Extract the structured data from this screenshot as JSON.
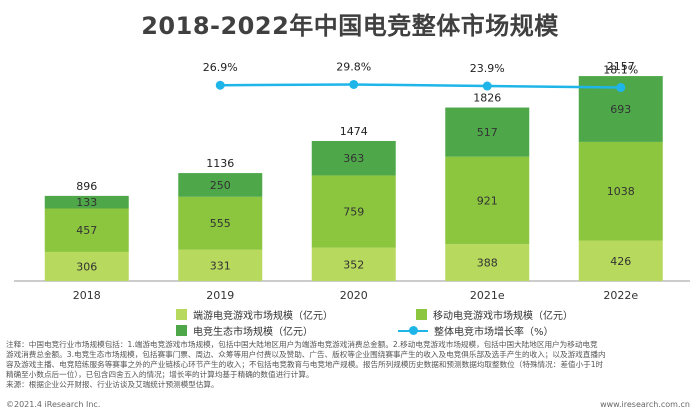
{
  "page": {
    "title": "2018-2022年中国电竞整体市场规模",
    "notes": [
      "注释：中国电竞行业市场规模包括：1.端游电竞游戏市场规模，包括中国大陆地区用户为端游电竞游戏消费总金额。2.移动电竞游戏市场规模，包括中国大陆地区用户为移动电竞",
      "游戏消费总金额。3.电竞生态市场规模，包括赛事门票、周边、众筹等用户付费以及赞助、广告、版权等企业围绕赛事产生的收入及电竞俱乐部及选手产生的收入；以及游戏直播内",
      "容及游戏主播、电竞陪练服务等赛事之外的产业链核心环节产生的收入；不包括电竞教育与电竞地产规模。报告所列规模历史数据和预测数据均取整数位（特殊情况：差值小于1时",
      "精确至小数点后一位），已包含四舍五入的情况；增长率的计算均基于精确的数值进行计算。",
      "来源：根据企业公开财报、行业访谈及艾瑞统计预测模型估算。"
    ],
    "footer_left": "©2021.4 iResearch Inc.",
    "footer_right": "www.iresearch.com.cn"
  },
  "chart_data": {
    "type": "bar",
    "stacked": true,
    "categories": [
      "2018",
      "2019",
      "2020",
      "2021e",
      "2022e"
    ],
    "series": [
      {
        "name": "端游电竞游戏市场规模（亿元）",
        "values": [
          306,
          331,
          352,
          388,
          426
        ],
        "color": "#b7d95d"
      },
      {
        "name": "移动电竞游戏市场规模（亿元）",
        "values": [
          457,
          555,
          759,
          921,
          1038
        ],
        "color": "#8cc63f"
      },
      {
        "name": "电竞生态市场规模（亿元）",
        "values": [
          133,
          250,
          363,
          517,
          693
        ],
        "color": "#4ea84a"
      }
    ],
    "totals": [
      896,
      1136,
      1474,
      1826,
      2157
    ],
    "line_series": {
      "name": "整体电竞市场增长率（%）",
      "values": [
        null,
        26.9,
        29.8,
        23.9,
        18.1
      ],
      "labels": [
        "",
        "26.9%",
        "29.8%",
        "23.9%",
        "18.1%"
      ],
      "color": "#1fb5e8"
    },
    "ylim": [
      0,
      2200
    ],
    "grid": false,
    "legend_position": "bottom"
  }
}
